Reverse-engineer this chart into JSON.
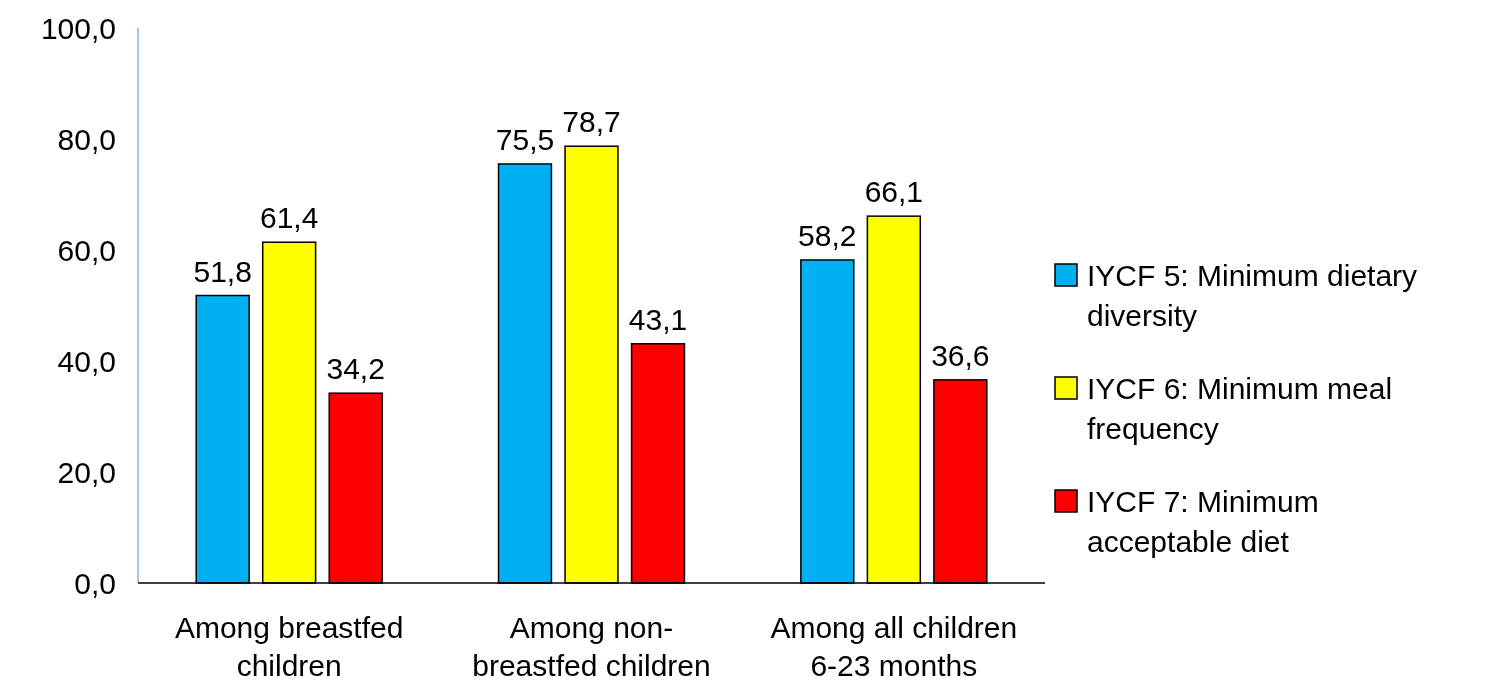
{
  "chart_data": {
    "type": "bar",
    "categories": [
      "Among breastfed children",
      "Among non-breastfed children",
      "Among all children 6-23 months"
    ],
    "series": [
      {
        "name": "IYCF 5: Minimum dietary diversity",
        "color": "#00b0f0",
        "values": [
          51.8,
          75.5,
          58.2
        ],
        "value_labels": [
          "51,8",
          "75,5",
          "58,2"
        ]
      },
      {
        "name": "IYCF 6: Minimum meal frequency",
        "color": "#ffff00",
        "values": [
          61.4,
          78.7,
          66.1
        ],
        "value_labels": [
          "61,4",
          "78,7",
          "66,1"
        ]
      },
      {
        "name": "IYCF 7: Minimum acceptable diet",
        "color": "#ff0000",
        "values": [
          34.2,
          43.1,
          36.6
        ],
        "value_labels": [
          "34,2",
          "43,1",
          "36,6"
        ]
      }
    ],
    "ylim": [
      0,
      100
    ],
    "yticks": [
      {
        "value": 0,
        "label": "0,0"
      },
      {
        "value": 20,
        "label": "20,0"
      },
      {
        "value": 40,
        "label": "40,0"
      },
      {
        "value": 60,
        "label": "60,0"
      },
      {
        "value": 80,
        "label": "80,0"
      },
      {
        "value": 100,
        "label": "100,0"
      }
    ],
    "grid": false,
    "legend": "right"
  }
}
